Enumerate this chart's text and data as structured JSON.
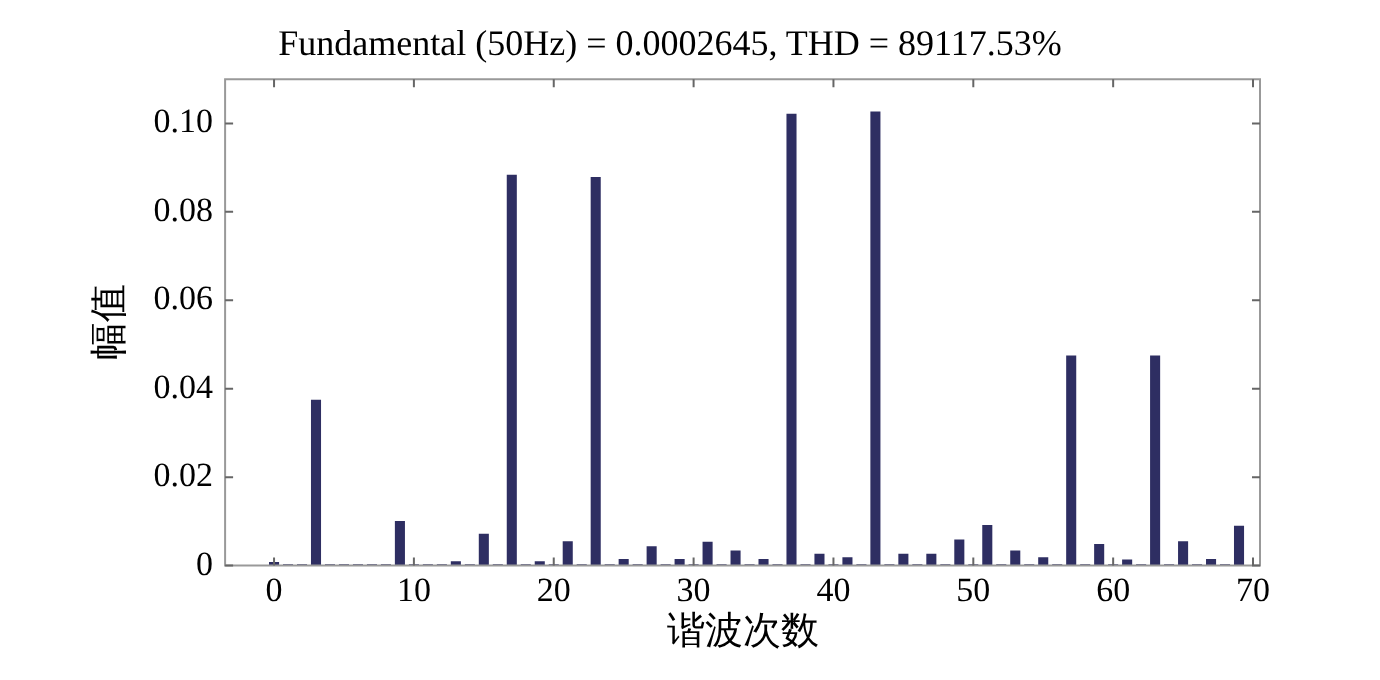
{
  "chart_data": {
    "type": "bar",
    "title": "Fundamental (50Hz) = 0.0002645, THD = 89117.53%",
    "xlabel": "谐波次数",
    "ylabel": "幅值",
    "x": [
      0,
      1,
      2,
      3,
      4,
      5,
      6,
      7,
      8,
      9,
      10,
      11,
      12,
      13,
      14,
      15,
      16,
      17,
      18,
      19,
      20,
      21,
      22,
      23,
      24,
      25,
      26,
      27,
      28,
      29,
      30,
      31,
      32,
      33,
      34,
      35,
      36,
      37,
      38,
      39,
      40,
      41,
      42,
      43,
      44,
      45,
      46,
      47,
      48,
      49,
      50,
      51,
      52,
      53,
      54,
      55,
      56,
      57,
      58,
      59,
      60,
      61,
      62,
      63,
      64,
      65,
      66,
      67,
      68,
      69
    ],
    "values": [
      0.0008,
      0.0003,
      0.0003,
      0.0375,
      0.0003,
      0.0003,
      0.0003,
      0.0003,
      0.0003,
      0.0101,
      0.0003,
      0.0003,
      0.0003,
      0.001,
      0.0003,
      0.0072,
      0.0003,
      0.0884,
      0.0003,
      0.001,
      0.0003,
      0.0055,
      0.0003,
      0.0879,
      0.0003,
      0.0015,
      0.0003,
      0.0044,
      0.0003,
      0.0015,
      0.0003,
      0.0054,
      0.0003,
      0.0034,
      0.0003,
      0.0015,
      0.0003,
      0.1022,
      0.0003,
      0.0027,
      0.0003,
      0.0019,
      0.0003,
      0.1027,
      0.0003,
      0.0027,
      0.0003,
      0.0027,
      0.0003,
      0.0059,
      0.0003,
      0.0092,
      0.0003,
      0.0034,
      0.0003,
      0.0019,
      0.0003,
      0.0475,
      0.0003,
      0.0049,
      0.0003,
      0.0014,
      0.0003,
      0.0475,
      0.0003,
      0.0055,
      0.0003,
      0.0015,
      0.0003,
      0.009
    ],
    "color": "#2e2e62",
    "xlim": [
      -3.5,
      70.5
    ],
    "xticks": [
      0,
      10,
      20,
      30,
      40,
      50,
      60,
      70
    ],
    "ylim": [
      0,
      0.11
    ],
    "yticks": [
      0,
      0.02,
      0.04,
      0.06,
      0.08,
      {
        "value": 0.1,
        "label": "0.10"
      }
    ],
    "grid": false,
    "legend": false
  }
}
